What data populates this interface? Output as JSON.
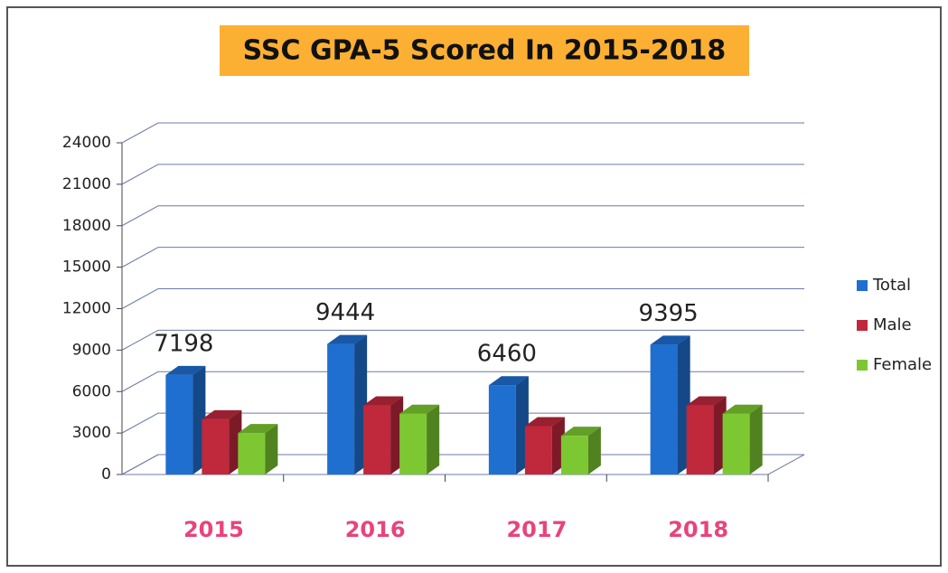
{
  "chart_data": {
    "type": "bar3d",
    "title": "SSC GPA-5 Scored In 2015-2018",
    "categories": [
      "2015",
      "2016",
      "2017",
      "2018"
    ],
    "series": [
      {
        "name": "Total",
        "color": "#1f6fd0",
        "values": [
          7198,
          9444,
          6460,
          9395
        ],
        "show_values": true
      },
      {
        "name": "Male",
        "color": "#c0283c",
        "values": [
          4000,
          5000,
          3500,
          5000
        ]
      },
      {
        "name": "Female",
        "color": "#7dc832",
        "values": [
          3000,
          4400,
          2800,
          4400
        ]
      }
    ],
    "ylim": [
      0,
      24000
    ],
    "yticks": [
      0,
      3000,
      6000,
      9000,
      12000,
      15000,
      18000,
      21000,
      24000
    ],
    "grid": true,
    "legend": "right"
  }
}
